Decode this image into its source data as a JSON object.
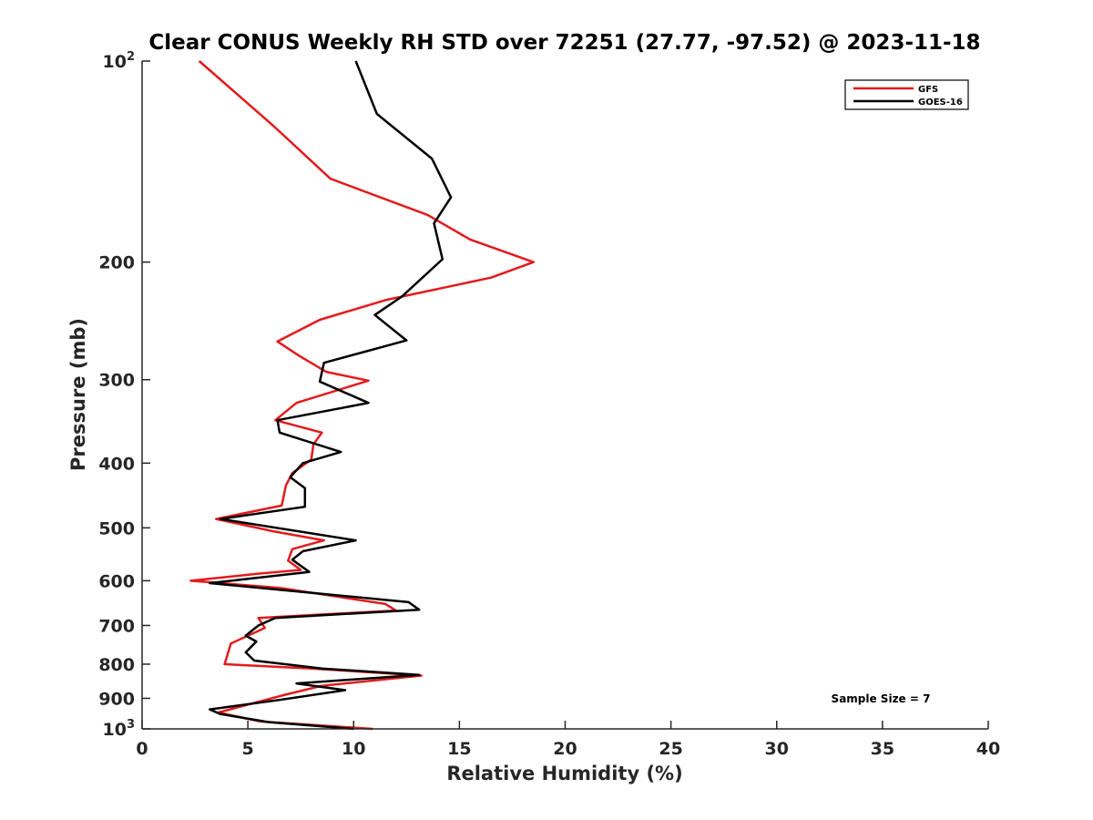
{
  "chart_data": {
    "type": "line",
    "title": "Clear CONUS Weekly RH STD over 72251 (27.77, -97.52) @ 2023-11-18",
    "xlabel": "Relative Humidity (%)",
    "ylabel": "Pressure (mb)",
    "xlim": [
      0,
      40
    ],
    "ylim": [
      100,
      1000
    ],
    "y_scale": "log",
    "y_reversed": true,
    "grid": false,
    "legend_position": "top-right",
    "x_ticks": [
      "0",
      "5",
      "10",
      "15",
      "20",
      "25",
      "30",
      "35",
      "40"
    ],
    "y_ticks": [
      {
        "p": 100,
        "base": "10",
        "exp": "2"
      },
      {
        "p": 200,
        "label": "200"
      },
      {
        "p": 300,
        "label": "300"
      },
      {
        "p": 400,
        "label": "400"
      },
      {
        "p": 500,
        "label": "500"
      },
      {
        "p": 600,
        "label": "600"
      },
      {
        "p": 700,
        "label": "700"
      },
      {
        "p": 800,
        "label": "800"
      },
      {
        "p": 900,
        "label": "900"
      },
      {
        "p": 1000,
        "base": "10",
        "exp": "3"
      }
    ],
    "annotation": "Sample Size = 7",
    "series": [
      {
        "name": "GFS",
        "color": "#e41a1c",
        "points": [
          [
            2.7,
            100
          ],
          [
            6.2,
            125
          ],
          [
            8.9,
            150
          ],
          [
            13.5,
            170
          ],
          [
            15.5,
            185
          ],
          [
            18.5,
            200
          ],
          [
            16.5,
            211
          ],
          [
            11.5,
            228
          ],
          [
            8.4,
            244
          ],
          [
            6.4,
            263
          ],
          [
            7.4,
            276
          ],
          [
            8.7,
            292
          ],
          [
            10.7,
            301
          ],
          [
            7.3,
            325
          ],
          [
            6.3,
            345
          ],
          [
            8.5,
            360
          ],
          [
            8.1,
            375
          ],
          [
            8.0,
            395
          ],
          [
            7.1,
            414
          ],
          [
            6.8,
            432
          ],
          [
            6.6,
            463
          ],
          [
            3.5,
            485
          ],
          [
            6.2,
            506
          ],
          [
            8.6,
            522
          ],
          [
            7.1,
            538
          ],
          [
            6.9,
            560
          ],
          [
            7.5,
            578
          ],
          [
            5.4,
            586
          ],
          [
            2.3,
            600
          ],
          [
            6.5,
            615
          ],
          [
            11.5,
            650
          ],
          [
            12.0,
            665
          ],
          [
            5.5,
            682
          ],
          [
            5.8,
            706
          ],
          [
            4.2,
            745
          ],
          [
            3.9,
            800
          ],
          [
            8.0,
            812
          ],
          [
            13.2,
            832
          ],
          [
            8.5,
            862
          ],
          [
            6.7,
            890
          ],
          [
            3.6,
            945
          ],
          [
            5.6,
            975
          ],
          [
            10.9,
            1000
          ]
        ]
      },
      {
        "name": "GOES-16",
        "color": "#000000",
        "points": [
          [
            10.1,
            100
          ],
          [
            11.1,
            120
          ],
          [
            13.7,
            140
          ],
          [
            14.6,
            160
          ],
          [
            13.8,
            175
          ],
          [
            14.2,
            198
          ],
          [
            12.3,
            225
          ],
          [
            11.0,
            240
          ],
          [
            12.5,
            262
          ],
          [
            8.6,
            283
          ],
          [
            8.4,
            302
          ],
          [
            10.7,
            325
          ],
          [
            6.4,
            345
          ],
          [
            6.5,
            360
          ],
          [
            9.4,
            385
          ],
          [
            7.6,
            400
          ],
          [
            7.0,
            420
          ],
          [
            7.7,
            436
          ],
          [
            7.7,
            465
          ],
          [
            3.7,
            485
          ],
          [
            10.1,
            522
          ],
          [
            7.6,
            542
          ],
          [
            7.1,
            558
          ],
          [
            7.9,
            582
          ],
          [
            3.2,
            605
          ],
          [
            12.6,
            646
          ],
          [
            13.1,
            663
          ],
          [
            6.3,
            682
          ],
          [
            5.5,
            700
          ],
          [
            4.9,
            725
          ],
          [
            5.4,
            740
          ],
          [
            4.9,
            768
          ],
          [
            5.3,
            790
          ],
          [
            8.5,
            812
          ],
          [
            13.1,
            830
          ],
          [
            7.3,
            855
          ],
          [
            9.6,
            875
          ],
          [
            6.5,
            905
          ],
          [
            3.2,
            935
          ],
          [
            3.7,
            950
          ],
          [
            6.0,
            977
          ],
          [
            10.0,
            1000
          ]
        ]
      }
    ]
  }
}
